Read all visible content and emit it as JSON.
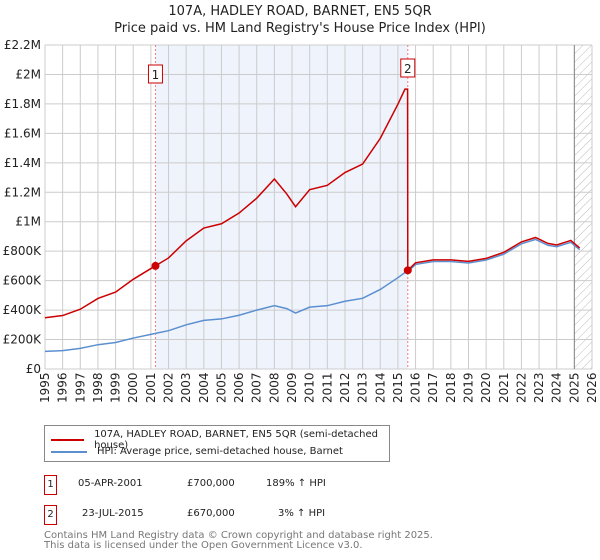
{
  "chart_data": {
    "type": "line",
    "title": "107A, HADLEY ROAD, BARNET, EN5 5QR",
    "subtitle": "Price paid vs. HM Land Registry's House Price Index (HPI)",
    "xlim": [
      1995,
      2026
    ],
    "ylim": [
      0,
      2200000
    ],
    "x_ticks": [
      "1995",
      "1996",
      "1997",
      "1998",
      "1999",
      "2000",
      "2001",
      "2002",
      "2003",
      "2004",
      "2005",
      "2006",
      "2007",
      "2008",
      "2009",
      "2010",
      "2011",
      "2012",
      "2013",
      "2014",
      "2015",
      "2016",
      "2017",
      "2018",
      "2019",
      "2020",
      "2021",
      "2022",
      "2023",
      "2024",
      "2025",
      "2026"
    ],
    "y_ticks": [
      {
        "v": 0,
        "l": "£0"
      },
      {
        "v": 200000,
        "l": "£200K"
      },
      {
        "v": 400000,
        "l": "£400K"
      },
      {
        "v": 600000,
        "l": "£600K"
      },
      {
        "v": 800000,
        "l": "£800K"
      },
      {
        "v": 1000000,
        "l": "£1M"
      },
      {
        "v": 1200000,
        "l": "£1.2M"
      },
      {
        "v": 1400000,
        "l": "£1.4M"
      },
      {
        "v": 1600000,
        "l": "£1.6M"
      },
      {
        "v": 1800000,
        "l": "£1.8M"
      },
      {
        "v": 2000000,
        "l": "£2M"
      },
      {
        "v": 2200000,
        "l": "£2.2M"
      }
    ],
    "series": [
      {
        "name": "107A, HADLEY ROAD, BARNET, EN5 5QR (semi-detached house)",
        "color": "#cc0000",
        "x": [
          1995,
          1996,
          1997,
          1998,
          1999,
          2000,
          2001,
          2001.26,
          2002,
          2003,
          2004,
          2005,
          2006,
          2007,
          2008,
          2008.7,
          2009.2,
          2010,
          2011,
          2012,
          2013,
          2014,
          2015,
          2015.4,
          2015.55,
          2015.56,
          2016,
          2017,
          2018,
          2019,
          2020,
          2021,
          2022,
          2022.8,
          2023.5,
          2024,
          2024.8,
          2025.3
        ],
        "y": [
          348000,
          363000,
          406000,
          479000,
          522000,
          609000,
          682000,
          700000,
          754000,
          870000,
          957000,
          986000,
          1059000,
          1160000,
          1290000,
          1189000,
          1102000,
          1218000,
          1247000,
          1334000,
          1392000,
          1566000,
          1798000,
          1900000,
          1900000,
          670000,
          721000,
          741000,
          741000,
          731000,
          751000,
          792000,
          863000,
          893000,
          853000,
          842000,
          873000,
          822000
        ]
      },
      {
        "name": "HPI: Average price, semi-detached house, Barnet",
        "color": "#5b8fd0",
        "x": [
          1995,
          1996,
          1997,
          1998,
          1999,
          2000,
          2001,
          2001.26,
          2002,
          2003,
          2004,
          2005,
          2006,
          2007,
          2008,
          2008.7,
          2009.2,
          2010,
          2011,
          2012,
          2013,
          2014,
          2015,
          2015.4,
          2015.56,
          2016,
          2017,
          2018,
          2019,
          2020,
          2021,
          2022,
          2022.8,
          2023.5,
          2024,
          2024.8,
          2025.3
        ],
        "y": [
          120000,
          125000,
          140000,
          165000,
          180000,
          210000,
          235000,
          242000,
          260000,
          300000,
          330000,
          340000,
          365000,
          400000,
          430000,
          410000,
          380000,
          420000,
          430000,
          460000,
          480000,
          540000,
          620000,
          655000,
          660000,
          710000,
          730000,
          730000,
          720000,
          740000,
          780000,
          850000,
          880000,
          840000,
          830000,
          860000,
          810000
        ]
      }
    ],
    "annotations": [
      {
        "label": "1",
        "x": 2001.26,
        "y": 700000
      },
      {
        "label": "2",
        "x": 2015.56,
        "y": 670000
      }
    ],
    "grid": true,
    "legend": "bottom"
  },
  "transactions": [
    {
      "num": "1",
      "date": "05-APR-2001",
      "price": "£700,000",
      "hpi": "189% ↑ HPI"
    },
    {
      "num": "2",
      "date": "23-JUL-2015",
      "price": "£670,000",
      "hpi": "3% ↑ HPI"
    }
  ],
  "footer": [
    "Contains HM Land Registry data © Crown copyright and database right 2025.",
    "This data is licensed under the Open Government Licence v3.0."
  ]
}
